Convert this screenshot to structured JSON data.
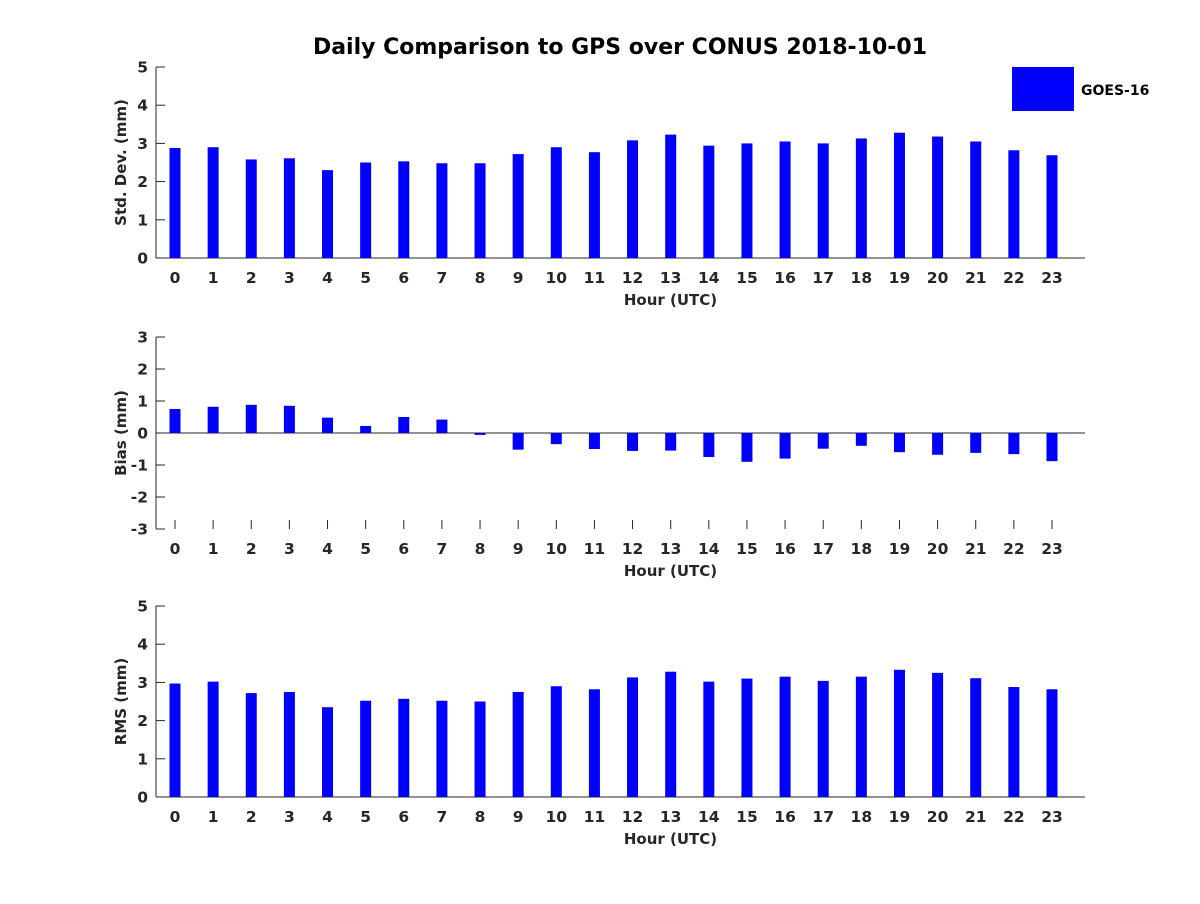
{
  "chart_data": {
    "title": "Daily Comparison to GPS over CONUS 2018-10-01",
    "legend": {
      "entries": [
        "GOES-16"
      ],
      "placement": "top-right"
    },
    "bar_color": "#0000ff",
    "categories": [
      "0",
      "1",
      "2",
      "3",
      "4",
      "5",
      "6",
      "7",
      "8",
      "9",
      "10",
      "11",
      "12",
      "13",
      "14",
      "15",
      "16",
      "17",
      "18",
      "19",
      "20",
      "21",
      "22",
      "23"
    ],
    "panels": [
      {
        "type": "bar",
        "ylabel": "Std. Dev. (mm)",
        "xlabel": "Hour (UTC)",
        "ylim": [
          0,
          5
        ],
        "yticks": [
          0,
          1,
          2,
          3,
          4,
          5
        ],
        "series": [
          {
            "name": "GOES-16",
            "values": [
              2.88,
              2.9,
              2.58,
              2.61,
              2.3,
              2.5,
              2.53,
              2.48,
              2.48,
              2.72,
              2.9,
              2.77,
              3.08,
              3.23,
              2.94,
              3.0,
              3.05,
              3.0,
              3.13,
              3.28,
              3.18,
              3.05,
              2.82,
              2.69
            ]
          }
        ]
      },
      {
        "type": "bar",
        "ylabel": "Bias (mm)",
        "xlabel": "Hour (UTC)",
        "ylim": [
          -3,
          3
        ],
        "yticks": [
          -3,
          -2,
          -1,
          0,
          1,
          2,
          3
        ],
        "series": [
          {
            "name": "GOES-16",
            "values": [
              0.75,
              0.82,
              0.88,
              0.85,
              0.48,
              0.22,
              0.5,
              0.42,
              -0.06,
              -0.52,
              -0.35,
              -0.5,
              -0.56,
              -0.55,
              -0.75,
              -0.9,
              -0.8,
              -0.49,
              -0.4,
              -0.6,
              -0.68,
              -0.62,
              -0.66,
              -0.88
            ]
          }
        ]
      },
      {
        "type": "bar",
        "ylabel": "RMS (mm)",
        "xlabel": "Hour (UTC)",
        "ylim": [
          0,
          5
        ],
        "yticks": [
          0,
          1,
          2,
          3,
          4,
          5
        ],
        "series": [
          {
            "name": "GOES-16",
            "values": [
              2.97,
              3.02,
              2.72,
              2.75,
              2.35,
              2.52,
              2.57,
              2.52,
              2.5,
              2.75,
              2.9,
              2.82,
              3.13,
              3.28,
              3.02,
              3.1,
              3.15,
              3.04,
              3.15,
              3.33,
              3.25,
              3.11,
              2.88,
              2.82
            ]
          }
        ]
      }
    ]
  }
}
